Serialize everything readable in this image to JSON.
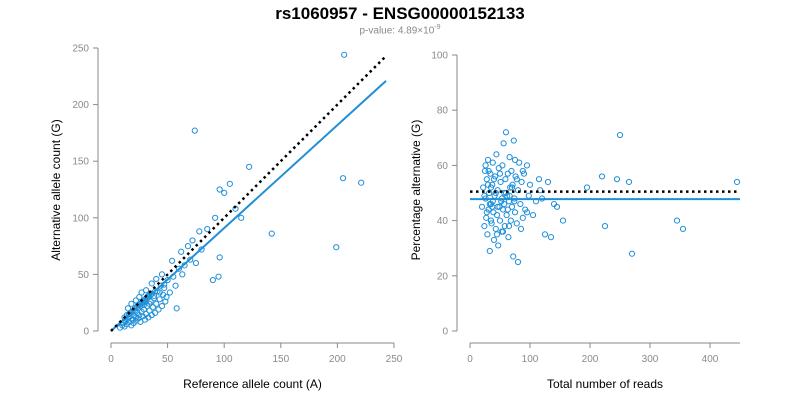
{
  "title": "rs1060957 - ENSG00000152133",
  "subtitle": {
    "prefix": "p-value: 4.89×10",
    "exponent": "-9"
  },
  "colors": {
    "points": "#1f8fd9",
    "fit": "#1f8fd9",
    "reference": "#000000",
    "axis": "#8a8a8a"
  },
  "chart_data": [
    {
      "type": "scatter",
      "xlabel": "Reference allele count (A)",
      "ylabel": "Alternative allele count (G)",
      "xlim": [
        0,
        250
      ],
      "ylim": [
        0,
        250
      ],
      "xticks": [
        "0",
        "50",
        "100",
        "150",
        "200",
        "250"
      ],
      "yticks": [
        "0",
        "50",
        "100",
        "150",
        "200",
        "250"
      ],
      "reference_line": {
        "style": "dotted",
        "x": [
          0,
          243
        ],
        "y": [
          0,
          243
        ]
      },
      "fit_line": {
        "style": "solid",
        "x": [
          0,
          243
        ],
        "y": [
          0,
          221
        ]
      },
      "points": [
        [
          8,
          3
        ],
        [
          10,
          5
        ],
        [
          11,
          7
        ],
        [
          12,
          4
        ],
        [
          13,
          9
        ],
        [
          14,
          6
        ],
        [
          15,
          11
        ],
        [
          16,
          8
        ],
        [
          17,
          13
        ],
        [
          18,
          5
        ],
        [
          19,
          10
        ],
        [
          20,
          14
        ],
        [
          20,
          7
        ],
        [
          21,
          18
        ],
        [
          22,
          12
        ],
        [
          22,
          9
        ],
        [
          23,
          16
        ],
        [
          24,
          20
        ],
        [
          24,
          11
        ],
        [
          25,
          14
        ],
        [
          26,
          22
        ],
        [
          26,
          8
        ],
        [
          27,
          17
        ],
        [
          28,
          25
        ],
        [
          28,
          13
        ],
        [
          29,
          19
        ],
        [
          30,
          10
        ],
        [
          30,
          28
        ],
        [
          31,
          15
        ],
        [
          32,
          22
        ],
        [
          33,
          30
        ],
        [
          33,
          12
        ],
        [
          34,
          18
        ],
        [
          35,
          26
        ],
        [
          36,
          33
        ],
        [
          36,
          14
        ],
        [
          37,
          21
        ],
        [
          38,
          29
        ],
        [
          39,
          16
        ],
        [
          40,
          24
        ],
        [
          41,
          35
        ],
        [
          42,
          19
        ],
        [
          43,
          28
        ],
        [
          44,
          40
        ],
        [
          45,
          22
        ],
        [
          46,
          32
        ],
        [
          47,
          38
        ],
        [
          48,
          26
        ],
        [
          49,
          30
        ],
        [
          50,
          45
        ],
        [
          52,
          34
        ],
        [
          54,
          62
        ],
        [
          55,
          48
        ],
        [
          57,
          40
        ],
        [
          58,
          20
        ],
        [
          60,
          55
        ],
        [
          62,
          70
        ],
        [
          63,
          50
        ],
        [
          65,
          58
        ],
        [
          68,
          75
        ],
        [
          70,
          63
        ],
        [
          72,
          80
        ],
        [
          74,
          177
        ],
        [
          75,
          60
        ],
        [
          78,
          88
        ],
        [
          80,
          72
        ],
        [
          85,
          90
        ],
        [
          90,
          45
        ],
        [
          92,
          100
        ],
        [
          95,
          48
        ],
        [
          96,
          65
        ],
        [
          96,
          125
        ],
        [
          100,
          122
        ],
        [
          105,
          130
        ],
        [
          110,
          108
        ],
        [
          115,
          100
        ],
        [
          122,
          145
        ],
        [
          142,
          86
        ],
        [
          199,
          74
        ],
        [
          205,
          135
        ],
        [
          206,
          244
        ],
        [
          221,
          131
        ],
        [
          15,
          20
        ],
        [
          18,
          24
        ],
        [
          22,
          27
        ],
        [
          25,
          30
        ],
        [
          27,
          34
        ],
        [
          29,
          23
        ],
        [
          31,
          36
        ],
        [
          34,
          24
        ],
        [
          36,
          42
        ],
        [
          38,
          31
        ],
        [
          40,
          46
        ],
        [
          43,
          34
        ],
        [
          45,
          50
        ],
        [
          47,
          41
        ],
        [
          16,
          15
        ],
        [
          19,
          17
        ],
        [
          23,
          21
        ],
        [
          26,
          24
        ],
        [
          29,
          26
        ],
        [
          32,
          29
        ],
        [
          12,
          12
        ],
        [
          14,
          14
        ],
        [
          17,
          16
        ],
        [
          21,
          20
        ],
        [
          24,
          23
        ],
        [
          27,
          25
        ],
        [
          30,
          27
        ],
        [
          33,
          31
        ],
        [
          35,
          32
        ],
        [
          39,
          35
        ]
      ]
    },
    {
      "type": "scatter",
      "xlabel": "Total number of reads",
      "ylabel": "Percentage alternative (G)",
      "xlim": [
        0,
        450
      ],
      "ylim": [
        0,
        100
      ],
      "xticks": [
        "0",
        "100",
        "200",
        "300",
        "400"
      ],
      "yticks": [
        "0",
        "20",
        "40",
        "60",
        "80",
        "100"
      ],
      "reference_line": {
        "style": "dotted",
        "x": [
          0,
          450
        ],
        "y": [
          50.5,
          50.5
        ]
      },
      "fit_line": {
        "style": "solid",
        "x": [
          0,
          450
        ],
        "y": [
          47.8,
          47.8
        ]
      },
      "points": [
        [
          20,
          45
        ],
        [
          22,
          52
        ],
        [
          24,
          38
        ],
        [
          25,
          58
        ],
        [
          26,
          48
        ],
        [
          27,
          41
        ],
        [
          28,
          55
        ],
        [
          29,
          35
        ],
        [
          30,
          62
        ],
        [
          31,
          44
        ],
        [
          32,
          50
        ],
        [
          33,
          29
        ],
        [
          34,
          57
        ],
        [
          35,
          46
        ],
        [
          36,
          39
        ],
        [
          37,
          53
        ],
        [
          38,
          61
        ],
        [
          39,
          43
        ],
        [
          40,
          33
        ],
        [
          41,
          49
        ],
        [
          42,
          56
        ],
        [
          43,
          37
        ],
        [
          44,
          64
        ],
        [
          45,
          42
        ],
        [
          46,
          51
        ],
        [
          47,
          31
        ],
        [
          48,
          59
        ],
        [
          49,
          45
        ],
        [
          50,
          40
        ],
        [
          51,
          54
        ],
        [
          52,
          47
        ],
        [
          53,
          36
        ],
        [
          54,
          60
        ],
        [
          55,
          44
        ],
        [
          56,
          68
        ],
        [
          57,
          50
        ],
        [
          58,
          38
        ],
        [
          59,
          55
        ],
        [
          60,
          72
        ],
        [
          61,
          42
        ],
        [
          62,
          49
        ],
        [
          63,
          57
        ],
        [
          64,
          34
        ],
        [
          65,
          47
        ],
        [
          66,
          63
        ],
        [
          67,
          52
        ],
        [
          68,
          40
        ],
        [
          69,
          58
        ],
        [
          70,
          45
        ],
        [
          71,
          53
        ],
        [
          72,
          27
        ],
        [
          73,
          69
        ],
        [
          74,
          48
        ],
        [
          75,
          43
        ],
        [
          76,
          56
        ],
        [
          78,
          39
        ],
        [
          80,
          51
        ],
        [
          82,
          61
        ],
        [
          84,
          46
        ],
        [
          86,
          54
        ],
        [
          88,
          41
        ],
        [
          90,
          57
        ],
        [
          92,
          44
        ],
        [
          95,
          60
        ],
        [
          98,
          49
        ],
        [
          100,
          53
        ],
        [
          105,
          42
        ],
        [
          110,
          47
        ],
        [
          115,
          55
        ],
        [
          117,
          51
        ],
        [
          120,
          48
        ],
        [
          125,
          35
        ],
        [
          130,
          54
        ],
        [
          135,
          34
        ],
        [
          140,
          46
        ],
        [
          145,
          45
        ],
        [
          155,
          40
        ],
        [
          195,
          52
        ],
        [
          220,
          56
        ],
        [
          225,
          38
        ],
        [
          245,
          55
        ],
        [
          250,
          71
        ],
        [
          265,
          54
        ],
        [
          270,
          28
        ],
        [
          345,
          40
        ],
        [
          355,
          37
        ],
        [
          445,
          54
        ],
        [
          26,
          60
        ],
        [
          28,
          43
        ],
        [
          31,
          58
        ],
        [
          33,
          46
        ],
        [
          35,
          52
        ],
        [
          38,
          47
        ],
        [
          40,
          55
        ],
        [
          43,
          50
        ],
        [
          46,
          45
        ],
        [
          50,
          57
        ],
        [
          53,
          48
        ],
        [
          57,
          46
        ],
        [
          60,
          50
        ],
        [
          63,
          44
        ],
        [
          66,
          49
        ],
        [
          70,
          52
        ],
        [
          74,
          47
        ],
        [
          78,
          55
        ],
        [
          35,
          40
        ],
        [
          45,
          35
        ],
        [
          55,
          36
        ],
        [
          65,
          38
        ],
        [
          75,
          62
        ],
        [
          85,
          37
        ],
        [
          95,
          43
        ],
        [
          80,
          25
        ],
        [
          88,
          58
        ],
        [
          24,
          49
        ],
        [
          30,
          53
        ],
        [
          37,
          45
        ]
      ]
    }
  ]
}
